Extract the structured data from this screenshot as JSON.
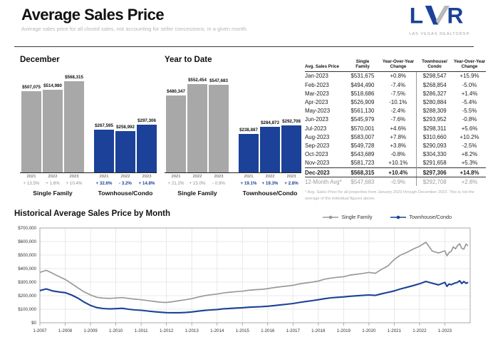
{
  "header": {
    "title": "Average Sales Price",
    "subtitle": "Average sales price for all closed sales, not accounting for seller concessions, in a given month.",
    "logo": {
      "text": "LVR",
      "tagline": "LAS VEGAS REALTORS®"
    }
  },
  "colors": {
    "blue": "#1b4298",
    "bar_gray": "#a8a8a8",
    "line_gray": "#9a9a9a"
  },
  "table": {
    "headers": [
      "Avg. Sales Price",
      "Single\nFamily",
      "Year-Over-Year\nChange",
      "Townhouse/\nCondo",
      "Year-Over-Year\nChange"
    ],
    "rows": [
      {
        "month": "Jan-2023",
        "sf": "$531,675",
        "sf_yoy": "+0.8%",
        "condo": "$298,547",
        "condo_yoy": "+15.9%",
        "style": ""
      },
      {
        "month": "Feb-2023",
        "sf": "$494,490",
        "sf_yoy": "-7.4%",
        "condo": "$268,854",
        "condo_yoy": "-5.0%",
        "style": ""
      },
      {
        "month": "Mar-2023",
        "sf": "$518,686",
        "sf_yoy": "-7.5%",
        "condo": "$286,327",
        "condo_yoy": "+1.4%",
        "style": ""
      },
      {
        "month": "Apr-2023",
        "sf": "$526,909",
        "sf_yoy": "-10.1%",
        "condo": "$280,884",
        "condo_yoy": "-5.4%",
        "style": ""
      },
      {
        "month": "May-2023",
        "sf": "$561,130",
        "sf_yoy": "-2.4%",
        "condo": "$288,309",
        "condo_yoy": "-5.5%",
        "style": ""
      },
      {
        "month": "Jun-2023",
        "sf": "$545,979",
        "sf_yoy": "-7.6%",
        "condo": "$293,952",
        "condo_yoy": "-0.8%",
        "style": ""
      },
      {
        "month": "Jul-2023",
        "sf": "$570,001",
        "sf_yoy": "+4.6%",
        "condo": "$298,311",
        "condo_yoy": "+5.6%",
        "style": ""
      },
      {
        "month": "Aug-2023",
        "sf": "$583,007",
        "sf_yoy": "+7.8%",
        "condo": "$310,660",
        "condo_yoy": "+10.2%",
        "style": ""
      },
      {
        "month": "Sep-2023",
        "sf": "$549,728",
        "sf_yoy": "+3.8%",
        "condo": "$290,093",
        "condo_yoy": "-2.5%",
        "style": ""
      },
      {
        "month": "Oct-2023",
        "sf": "$543,689",
        "sf_yoy": "-0.8%",
        "condo": "$304,330",
        "condo_yoy": "+8.2%",
        "style": ""
      },
      {
        "month": "Nov-2023",
        "sf": "$581,723",
        "sf_yoy": "+10.1%",
        "condo": "$291,658",
        "condo_yoy": "+5.3%",
        "style": ""
      },
      {
        "month": "Dec-2023",
        "sf": "$568,315",
        "sf_yoy": "+10.4%",
        "condo": "$297,306",
        "condo_yoy": "+14.8%",
        "style": "bold"
      },
      {
        "month": "12-Month Avg*",
        "sf": "$547,683",
        "sf_yoy": "-0.9%",
        "condo": "$292,708",
        "condo_yoy": "+2.8%",
        "style": "muted"
      }
    ],
    "footnote": "* Avg. Sales Price for all properties from January 2023 through December 2023. This is not the average of the individual figures above."
  },
  "chart_data": [
    {
      "type": "bar",
      "title": "December",
      "ylim": [
        0,
        600000
      ],
      "groups": [
        {
          "name": "Single Family",
          "color": "#a8a8a8",
          "emphasis": false,
          "years": [
            "2021",
            "2022",
            "2023"
          ],
          "values": [
            507075,
            514980,
            568315
          ],
          "value_labels": [
            "$507,075",
            "$514,980",
            "$568,315"
          ],
          "changes": [
            "+ 13.5%",
            "+ 1.6%",
            "+ 10.4%"
          ]
        },
        {
          "name": "Townhouse/Condo",
          "color": "#1b4298",
          "emphasis": true,
          "years": [
            "2021",
            "2022",
            "2023"
          ],
          "values": [
            267595,
            258992,
            297306
          ],
          "value_labels": [
            "$267,595",
            "$258,992",
            "$297,306"
          ],
          "changes": [
            "+ 32.6%",
            "- 3.2%",
            "+ 14.8%"
          ]
        }
      ]
    },
    {
      "type": "bar",
      "title": "Year to Date",
      "ylim": [
        0,
        600000
      ],
      "groups": [
        {
          "name": "Single Family",
          "color": "#a8a8a8",
          "emphasis": false,
          "years": [
            "2021",
            "2022",
            "2023"
          ],
          "values": [
            480347,
            552454,
            547683
          ],
          "value_labels": [
            "$480,347",
            "$552,454",
            "$547,683"
          ],
          "changes": [
            "+ 21.2%",
            "+ 15.0%",
            "- 0.9%"
          ]
        },
        {
          "name": "Townhouse/Condo",
          "color": "#1b4298",
          "emphasis": true,
          "years": [
            "2021",
            "2022",
            "2023"
          ],
          "values": [
            238887,
            284873,
            292708
          ],
          "value_labels": [
            "$238,887",
            "$284,873",
            "$292,708"
          ],
          "changes": [
            "+ 19.1%",
            "+ 19.3%",
            "+ 2.8%"
          ]
        }
      ]
    },
    {
      "type": "line",
      "title": "Historical Average Sales Price by Month",
      "ylim": [
        0,
        700000
      ],
      "xlim": [
        2007,
        2024.1
      ],
      "y_ticks": [
        "$0",
        "$100,000",
        "$200,000",
        "$300,000",
        "$400,000",
        "$500,000",
        "$600,000",
        "$700,000"
      ],
      "x_ticks": [
        "1-2007",
        "1-2008",
        "1-2009",
        "1-2010",
        "1-2011",
        "1-2012",
        "1-2013",
        "1-2014",
        "1-2015",
        "1-2016",
        "1-2017",
        "1-2018",
        "1-2019",
        "1-2020",
        "1-2021",
        "1-2022",
        "1-2023"
      ],
      "legend_position": "top-right",
      "grid": true,
      "x": [
        2007,
        2007.25,
        2007.5,
        2007.75,
        2008,
        2008.25,
        2008.5,
        2008.75,
        2009,
        2009.25,
        2009.5,
        2009.75,
        2010,
        2010.25,
        2010.5,
        2010.75,
        2011,
        2011.25,
        2011.5,
        2011.75,
        2012,
        2012.25,
        2012.5,
        2012.75,
        2013,
        2013.25,
        2013.5,
        2013.75,
        2014,
        2014.25,
        2014.5,
        2014.75,
        2015,
        2015.25,
        2015.5,
        2015.75,
        2016,
        2016.25,
        2016.5,
        2016.75,
        2017,
        2017.25,
        2017.5,
        2017.75,
        2018,
        2018.25,
        2018.5,
        2018.75,
        2019,
        2019.25,
        2019.5,
        2019.75,
        2020,
        2020.25,
        2020.5,
        2020.75,
        2021,
        2021.25,
        2021.5,
        2021.75,
        2022,
        2022.25,
        2022.5,
        2022.75,
        2023,
        2023.083,
        2023.167,
        2023.25,
        2023.333,
        2023.417,
        2023.5,
        2023.583,
        2023.667,
        2023.75,
        2023.833,
        2023.917
      ],
      "series": [
        {
          "name": "Single Family",
          "color": "#9a9a9a",
          "values": [
            372000,
            388000,
            365000,
            342000,
            320000,
            290000,
            258000,
            228000,
            205000,
            188000,
            182000,
            180000,
            183000,
            186000,
            180000,
            174000,
            170000,
            164000,
            158000,
            152000,
            150000,
            156000,
            163000,
            170000,
            178000,
            190000,
            200000,
            207000,
            212000,
            220000,
            226000,
            230000,
            233000,
            240000,
            244000,
            247000,
            252000,
            260000,
            266000,
            271000,
            277000,
            287000,
            294000,
            300000,
            308000,
            322000,
            330000,
            336000,
            340000,
            352000,
            358000,
            364000,
            372000,
            365000,
            395000,
            420000,
            468000,
            500000,
            520000,
            545000,
            565000,
            595000,
            530000,
            515000,
            531675,
            494490,
            518686,
            526909,
            561130,
            545979,
            570001,
            583007,
            549728,
            543689,
            581723,
            568315
          ]
        },
        {
          "name": "Townhouse/Condo",
          "color": "#1b4298",
          "values": [
            238000,
            250000,
            235000,
            228000,
            222000,
            205000,
            182000,
            152000,
            128000,
            112000,
            105000,
            102000,
            104000,
            107000,
            100000,
            95000,
            92000,
            87000,
            82000,
            78000,
            75000,
            74000,
            74000,
            76000,
            80000,
            86000,
            91000,
            95000,
            98000,
            103000,
            106000,
            109000,
            111000,
            115000,
            117000,
            119000,
            122000,
            127000,
            132000,
            137000,
            142000,
            150000,
            157000,
            163000,
            170000,
            178000,
            184000,
            188000,
            191000,
            196000,
            199000,
            202000,
            205000,
            202000,
            214000,
            224000,
            235000,
            250000,
            262000,
            275000,
            288000,
            305000,
            292000,
            280000,
            298547,
            268854,
            286327,
            280884,
            288309,
            293952,
            298311,
            310660,
            290093,
            304330,
            291658,
            297306
          ]
        }
      ]
    }
  ]
}
